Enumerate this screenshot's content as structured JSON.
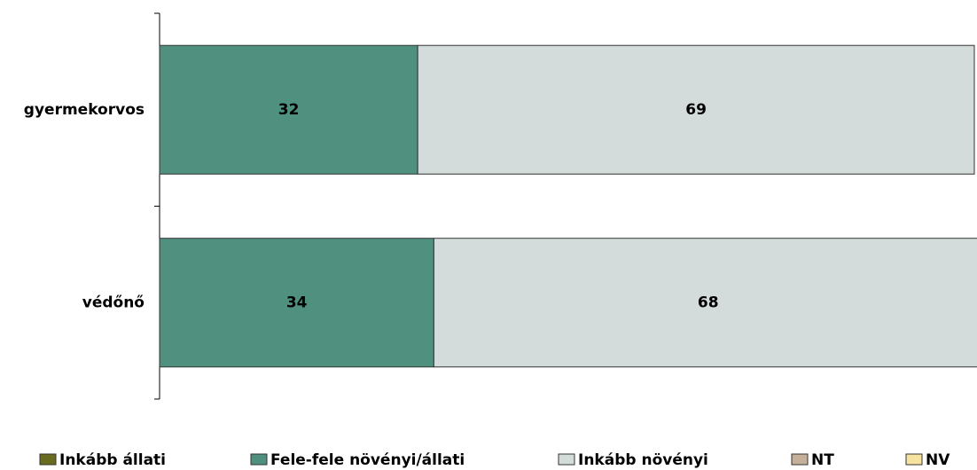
{
  "chart_data": {
    "type": "stacked-barh",
    "categories": [
      "gyermekorvos",
      "védőnő"
    ],
    "series": [
      {
        "name": "Inkább állati",
        "color": "#6b6b1f",
        "values": [
          0,
          0
        ]
      },
      {
        "name": "Fele-fele növényi/állati",
        "color": "#4f907f",
        "values": [
          32,
          34
        ]
      },
      {
        "name": "Inkább növényi",
        "color": "#d3dcdb",
        "values": [
          69,
          68
        ]
      },
      {
        "name": "NT",
        "color": "#c6b09a",
        "values": [
          null,
          null
        ]
      },
      {
        "name": "NV",
        "color": "#f6e3a0",
        "values": [
          null,
          null
        ]
      }
    ],
    "xlim": [
      0,
      101
    ]
  }
}
